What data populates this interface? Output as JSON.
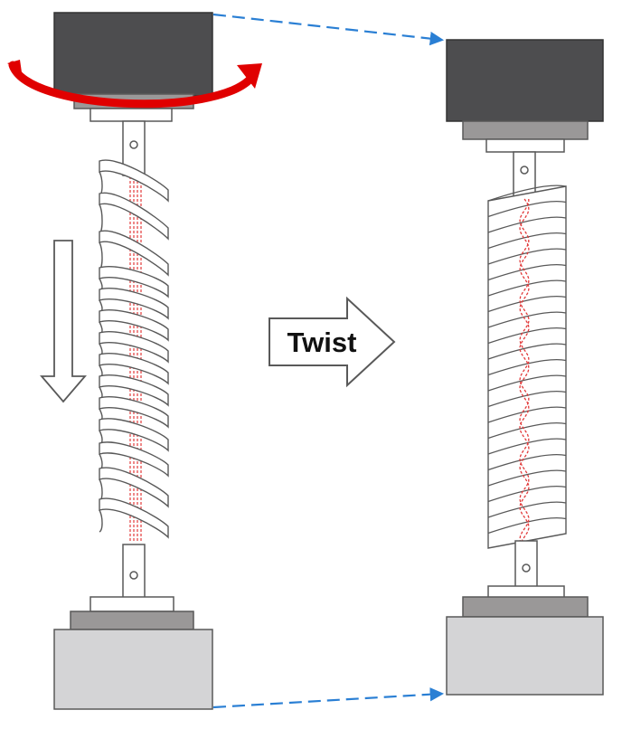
{
  "arrow_label": "Twist",
  "colors": {
    "upper_clamp_head": "#4d4d4f",
    "lower_clamp_base": "#d4d4d6",
    "clamp_plate": "#9a9898",
    "rotation_arrow": "#e00000",
    "fiber_core": "#e23b3b",
    "guide_lines": "#2a7fd4",
    "outline": "#595959"
  },
  "icons": {
    "rotation": "curved-arrow-icon",
    "pull_direction": "down-arrow-icon",
    "transition": "right-arrow-icon"
  }
}
